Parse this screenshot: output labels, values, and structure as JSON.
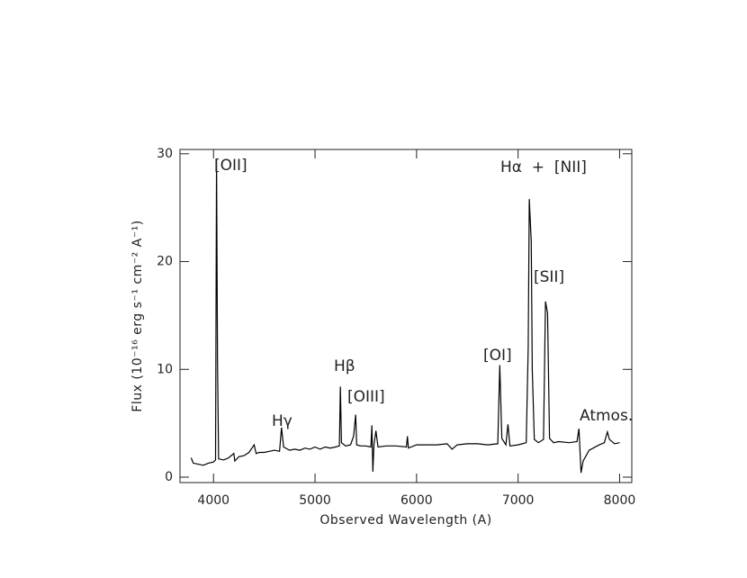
{
  "chart_data": {
    "type": "line",
    "x_label": "Observed Wavelength (A)",
    "y_label": "Flux (10⁻¹⁶ erg s⁻¹ cm⁻² A⁻¹)",
    "annotations": [
      "[OII]",
      "Hγ",
      "Hβ",
      "[OIII]",
      "[OI]",
      "Hα  +  [NII]",
      "[SII]",
      "Atmos."
    ],
    "x": [
      3780,
      3800,
      3850,
      3900,
      3950,
      4000,
      4020,
      4030,
      4040,
      4050,
      4100,
      4150,
      4200,
      4210,
      4250,
      4300,
      4350,
      4400,
      4420,
      4450,
      4500,
      4550,
      4600,
      4650,
      4670,
      4690,
      4750,
      4800,
      4850,
      4900,
      4950,
      5000,
      5050,
      5100,
      5150,
      5200,
      5240,
      5250,
      5260,
      5300,
      5350,
      5380,
      5400,
      5410,
      5450,
      5500,
      5550,
      5560,
      5570,
      5580,
      5600,
      5620,
      5700,
      5800,
      5900,
      5910,
      5920,
      6000,
      6100,
      6200,
      6300,
      6350,
      6400,
      6500,
      6600,
      6700,
      6800,
      6820,
      6840,
      6880,
      6900,
      6920,
      7000,
      7080,
      7100,
      7110,
      7130,
      7140,
      7160,
      7200,
      7250,
      7270,
      7290,
      7310,
      7350,
      7400,
      7500,
      7580,
      7600,
      7620,
      7640,
      7700,
      7800,
      7850,
      7880,
      7900,
      7950,
      8000
    ],
    "series": [
      {
        "color": "#000000",
        "values": [
          1.8,
          1.3,
          1.2,
          1.1,
          1.3,
          1.4,
          1.6,
          29.5,
          10.5,
          1.7,
          1.6,
          1.8,
          2.2,
          1.5,
          1.9,
          2.0,
          2.3,
          3.0,
          2.2,
          2.3,
          2.3,
          2.4,
          2.5,
          2.4,
          4.6,
          2.8,
          2.5,
          2.6,
          2.5,
          2.7,
          2.6,
          2.8,
          2.6,
          2.8,
          2.7,
          2.8,
          2.9,
          8.4,
          3.2,
          2.9,
          3.0,
          3.8,
          5.8,
          3.0,
          2.9,
          2.9,
          2.8,
          4.8,
          0.5,
          3.0,
          4.3,
          2.8,
          2.9,
          2.9,
          2.8,
          3.8,
          2.7,
          3.0,
          3.0,
          3.0,
          3.1,
          2.6,
          3.0,
          3.1,
          3.1,
          3.0,
          3.1,
          10.4,
          3.6,
          3.0,
          4.9,
          2.9,
          3.0,
          3.2,
          12,
          25.8,
          21.8,
          10,
          3.5,
          3.2,
          3.5,
          16.3,
          15.2,
          3.6,
          3.2,
          3.3,
          3.2,
          3.3,
          4.5,
          0.4,
          1.5,
          2.5,
          3.0,
          3.2,
          4.2,
          3.5,
          3.1,
          3.2
        ]
      }
    ],
    "xlim": [
      3670,
      8120
    ],
    "ylim": [
      -0.5,
      30.4
    ],
    "xticks": [
      4000,
      5000,
      6000,
      7000,
      8000
    ],
    "yticks": [
      0,
      10,
      20,
      30
    ]
  }
}
